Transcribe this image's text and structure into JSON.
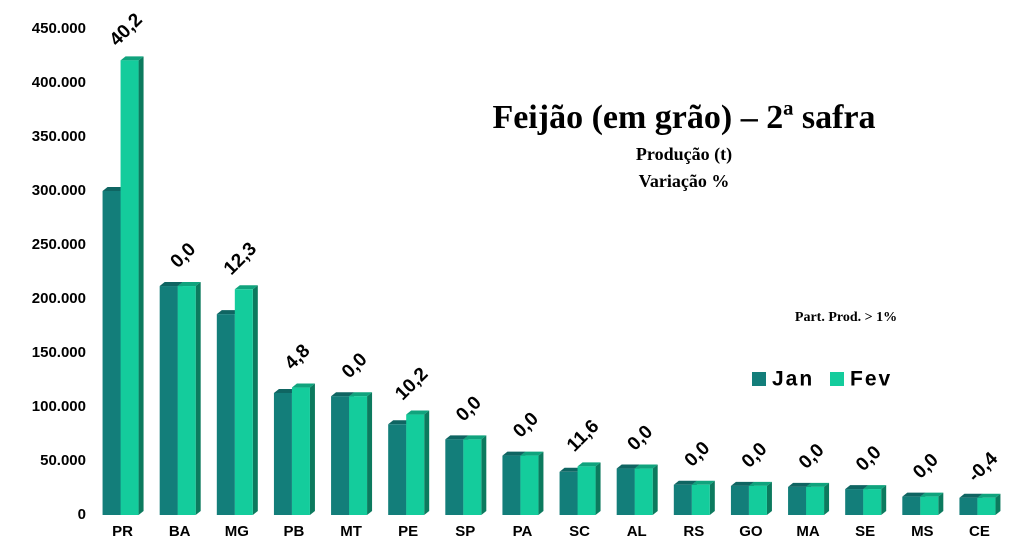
{
  "chart_data": {
    "type": "bar",
    "title": "Feijão (em grão) – 2ª safra",
    "subtitle": [
      "Produção (t)",
      "Variação %"
    ],
    "note": "Part. Prod. > 1%",
    "categories": [
      "PR",
      "BA",
      "MG",
      "PB",
      "MT",
      "PE",
      "SP",
      "PA",
      "SC",
      "AL",
      "RS",
      "GO",
      "MA",
      "SE",
      "MS",
      "CE"
    ],
    "series": [
      {
        "name": "Jan",
        "color": "#137e7a",
        "values": [
          300000,
          212000,
          186000,
          113000,
          110000,
          84000,
          70000,
          55000,
          40000,
          43000,
          28000,
          27000,
          26000,
          24000,
          17000,
          16000
        ]
      },
      {
        "name": "Fev",
        "color": "#14cc9c",
        "values": [
          421000,
          212000,
          209000,
          118000,
          110000,
          93000,
          70000,
          55000,
          45000,
          43000,
          28000,
          27000,
          26000,
          24000,
          17000,
          16000
        ]
      }
    ],
    "annotations": [
      "40,2",
      "0,0",
      "12,3",
      "4,8",
      "0,0",
      "10,2",
      "0,0",
      "0,0",
      "11,6",
      "0,0",
      "0,0",
      "0,0",
      "0,0",
      "0,0",
      "0,0",
      "-0,4"
    ],
    "ylim": [
      0,
      450000
    ],
    "yticks": [
      0,
      {
        "value": 50000,
        "label": "50.000"
      },
      {
        "value": 100000,
        "label": "100.000"
      },
      {
        "value": 150000,
        "label": "150.000"
      },
      {
        "value": 200000,
        "label": "200.000"
      },
      {
        "value": 250000,
        "label": "250.000"
      },
      {
        "value": 300000,
        "label": "300.000"
      },
      {
        "value": 350000,
        "label": "350.000"
      },
      {
        "value": 400000,
        "label": "400.000"
      },
      {
        "value": 450000,
        "label": "450.000"
      }
    ],
    "legend": "right"
  }
}
